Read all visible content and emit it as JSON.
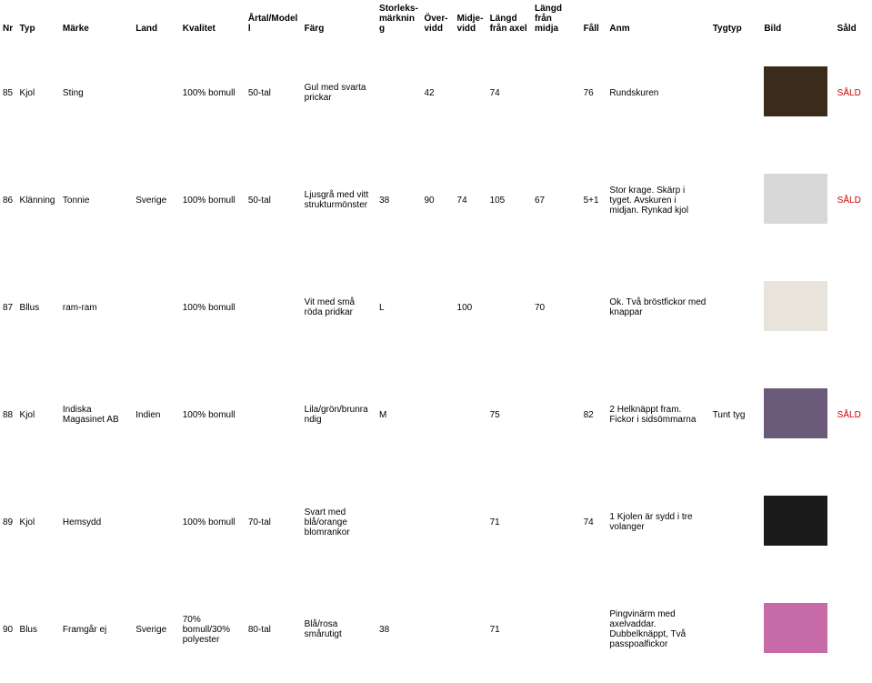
{
  "colors": {
    "sold": "#d00000",
    "text": "#000000",
    "background": "#ffffff",
    "img_bg": "#3a2b1a"
  },
  "header": {
    "nr": "Nr",
    "typ": "Typ",
    "marke": "Märke",
    "land": "Land",
    "kvalitet": "Kvalitet",
    "artal": "Årtal/Modell",
    "farg": "Färg",
    "storlek": "Storleks-\nmärkning",
    "overvidd": "Över-\nvidd",
    "midjevidd": "Midje-\nvidd",
    "langd_axel": "Längd\nfrån axel",
    "langd_midja": "Längd\nfrån midja",
    "fall": "Fåll",
    "anm": "Anm",
    "tygtyp": "Tygtyp",
    "bild": "Bild",
    "sald": "Såld"
  },
  "rows": [
    {
      "nr": "85",
      "typ": "Kjol",
      "marke": "Sting",
      "land": "",
      "kvalitet": "100% bomull",
      "artal": "50-tal",
      "farg": "Gul med svarta prickar",
      "storlek": "",
      "overvidd": "42",
      "midjevidd": "",
      "langd_axel": "74",
      "langd_midja": "",
      "fall": "76",
      "anm": "Rundskuren",
      "tygtyp": "",
      "bild_bg": "#3a2b1a",
      "sald": "SÅLD"
    },
    {
      "nr": "86",
      "typ": "Klänning",
      "marke": "Tonnie",
      "land": "Sverige",
      "kvalitet": "100% bomull",
      "artal": "50-tal",
      "farg": "Ljusgrå med vitt strukturmönster",
      "storlek": "38",
      "overvidd": "90",
      "midjevidd": "74",
      "langd_axel": "105",
      "langd_midja": "67",
      "fall": "5+1",
      "anm": "Stor krage. Skärp i tyget. Avskuren i midjan. Rynkad kjol",
      "tygtyp": "",
      "bild_bg": "#d8d8d8",
      "sald": "SÅLD"
    },
    {
      "nr": "87",
      "typ": "Bllus",
      "marke": "ram-ram",
      "land": "",
      "kvalitet": "100% bomull",
      "artal": "",
      "farg": "Vit med små röda pridkar",
      "storlek": "L",
      "overvidd": "",
      "midjevidd": "100",
      "langd_axel": "",
      "langd_midja": "70",
      "fall": "",
      "anm": "Ok. Två bröstfickor med knappar",
      "tygtyp": "",
      "bild_bg": "#e8e4dc",
      "sald": ""
    },
    {
      "nr": "88",
      "typ": "Kjol",
      "marke": "Indiska Magasinet AB",
      "land": "Indien",
      "kvalitet": "100% bomull",
      "artal": "",
      "farg": "Lila/grön/brunra ndig",
      "storlek": "M",
      "overvidd": "",
      "midjevidd": "",
      "langd_axel": "75",
      "langd_midja": "",
      "fall": "82",
      "anm": "Helknäppt fram. Fickor i sidsömmarna",
      "tygtyp": "Tunt tyg",
      "fall2": "2",
      "bild_bg": "#6b5a7a",
      "sald": "SÅLD"
    },
    {
      "nr": "89",
      "typ": "Kjol",
      "marke": "Hemsydd",
      "land": "",
      "kvalitet": "100% bomull",
      "artal": "70-tal",
      "farg": "Svart med blå/orange blomrankor",
      "storlek": "",
      "overvidd": "",
      "midjevidd": "",
      "langd_axel": "71",
      "langd_midja": "",
      "fall": "74",
      "anm": "Kjolen är sydd i tre volanger",
      "fall2": "1",
      "tygtyp": "",
      "bild_bg": "#1a1a1a",
      "sald": ""
    },
    {
      "nr": "90",
      "typ": "Blus",
      "marke": "Framgår ej",
      "land": "Sverige",
      "kvalitet": "70% bomull/30% polyester",
      "artal": "80-tal",
      "farg": "Blå/rosa smårutigt",
      "storlek": "38",
      "overvidd": "",
      "midjevidd": "",
      "langd_axel": "71",
      "langd_midja": "",
      "fall": "",
      "anm": "Pingvinärm med axelvaddar. Dubbelknäppt, Två passpoalfickor",
      "tygtyp": "",
      "bild_bg": "#c76aa8",
      "sald": ""
    }
  ]
}
